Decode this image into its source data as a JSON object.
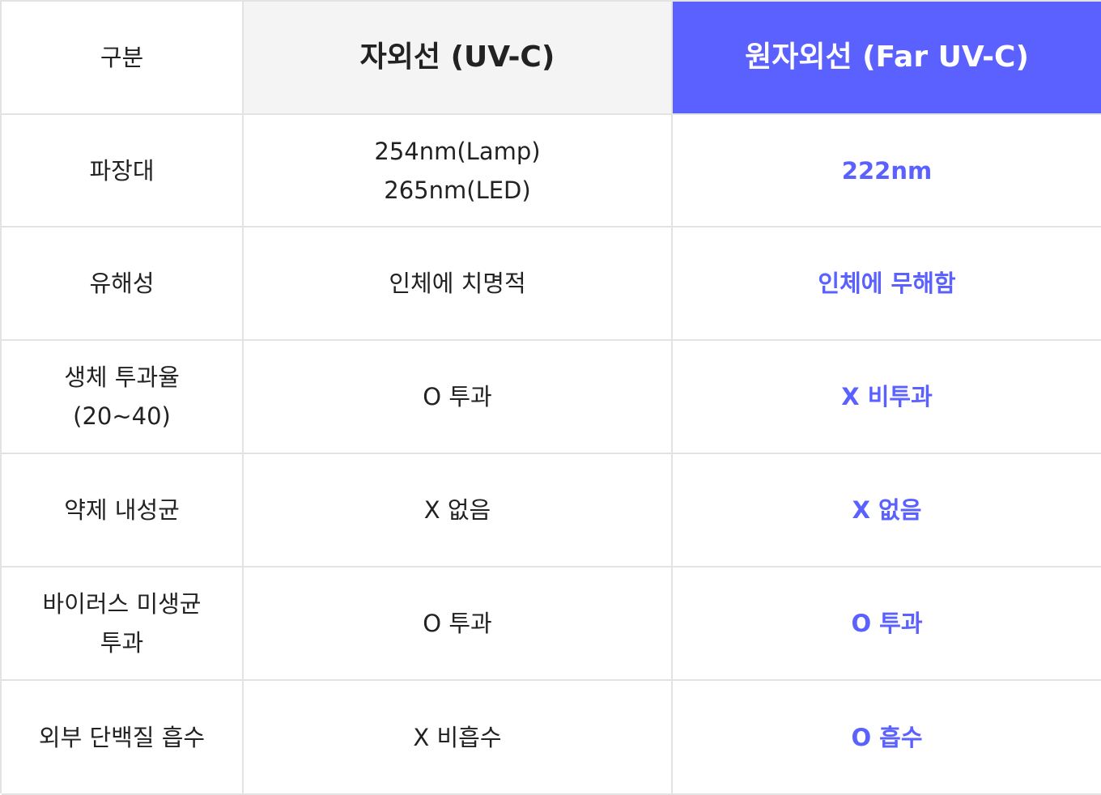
{
  "header": {
    "category": "구분",
    "uvc": "자외선 (UV-C)",
    "far_uvc": "원자외선 (Far UV-C)"
  },
  "rows": [
    {
      "label": "파장대",
      "uvc": "254nm(Lamp)\n265nm(LED)",
      "far": "222nm"
    },
    {
      "label": "유해성",
      "uvc": "인체에 치명적",
      "far": "인체에 무해함"
    },
    {
      "label": "생체 투과율\n(20~40)",
      "uvc": "O 투과",
      "far": "X 비투과"
    },
    {
      "label": "약제 내성균",
      "uvc": "X 없음",
      "far": "X 없음"
    },
    {
      "label": "바이러스 미생균\n투과",
      "uvc": "O 투과",
      "far": "O 투과"
    },
    {
      "label": "외부 단백질 흡수",
      "uvc": "X 비흡수",
      "far": "O 흡수"
    }
  ],
  "colors": {
    "accent": "#5b61ff",
    "header_bg": "#f4f4f4",
    "border": "#e3e3e3"
  }
}
